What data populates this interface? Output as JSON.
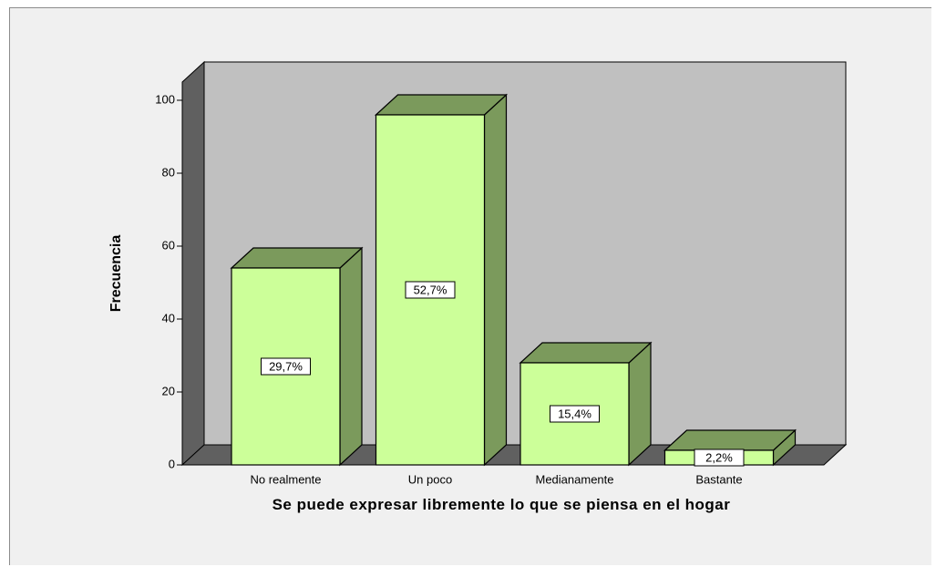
{
  "chart_data": {
    "type": "bar3d",
    "x_label": "Se puede expresar libremente lo que se piensa en el hogar",
    "y_label": "Frecuencia",
    "categories": [
      "No realmente",
      "Un poco",
      "Medianamente",
      "Bastante"
    ],
    "values": [
      54,
      96,
      28,
      4
    ],
    "data_labels": [
      "29,7%",
      "52,7%",
      "15,4%",
      "2,2%"
    ],
    "ylim": [
      0,
      105
    ],
    "yticks": [
      0,
      20,
      40,
      60,
      80,
      100
    ],
    "color": "#ccff99",
    "side_color": "#7b9a5c",
    "wall_color": "#c0c0c0"
  }
}
